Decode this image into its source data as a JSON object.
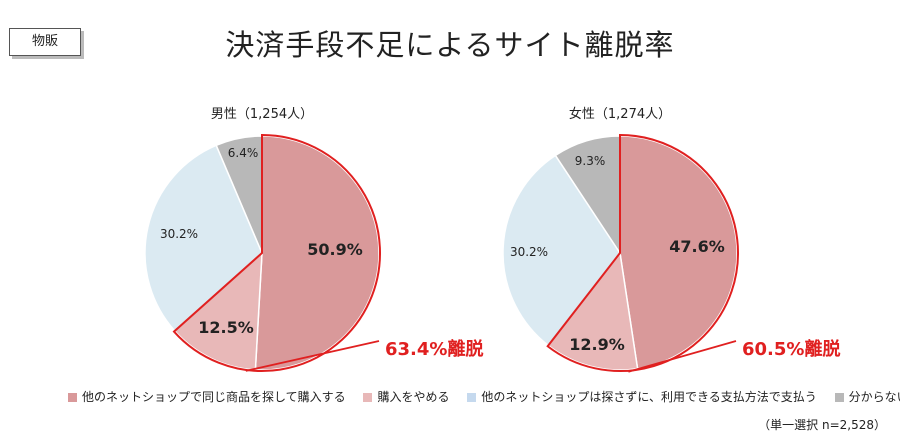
{
  "tag": "物販",
  "title": "決済手段不足によるサイト離脱率",
  "chart_data": [
    {
      "type": "pie",
      "title": "男性（1,254人）",
      "slices": [
        {
          "label": "他のネットショップで同じ商品を探して購入する",
          "value": 50.9,
          "display": "50.9%",
          "color": "#d9999a"
        },
        {
          "label": "購入をやめる",
          "value": 12.5,
          "display": "12.5%",
          "color": "#e8b8b8"
        },
        {
          "label": "他のネットショップは探さずに、利用できる支払方法で支払う",
          "value": 30.2,
          "display": "30.2%",
          "color": "#dbeaf2"
        },
        {
          "label": "分からない",
          "value": 6.4,
          "display": "6.4%",
          "color": "#b8b8b8"
        }
      ],
      "annotation": "63.4%離脱"
    },
    {
      "type": "pie",
      "title": "女性（1,274人）",
      "slices": [
        {
          "label": "他のネットショップで同じ商品を探して購入する",
          "value": 47.6,
          "display": "47.6%",
          "color": "#d9999a"
        },
        {
          "label": "購入をやめる",
          "value": 12.9,
          "display": "12.9%",
          "color": "#e8b8b8"
        },
        {
          "label": "他のネットショップは探さずに、利用できる支払方法で支払う",
          "value": 30.2,
          "display": "30.2%",
          "color": "#dbeaf2"
        },
        {
          "label": "分からない",
          "value": 9.3,
          "display": "9.3%",
          "color": "#b8b8b8"
        }
      ],
      "annotation": "60.5%離脱"
    }
  ],
  "legend": [
    {
      "label": "他のネットショップで同じ商品を探して購入する",
      "color": "#d9999a"
    },
    {
      "label": "購入をやめる",
      "color": "#e8b8b8"
    },
    {
      "label": "他のネットショップは探さずに、利用できる支払方法で支払う",
      "color": "#c5d9ee"
    },
    {
      "label": "分からない",
      "color": "#b8b8b8"
    }
  ],
  "note": "（単一選択 n=2,528）",
  "highlight_color": "#e02020"
}
